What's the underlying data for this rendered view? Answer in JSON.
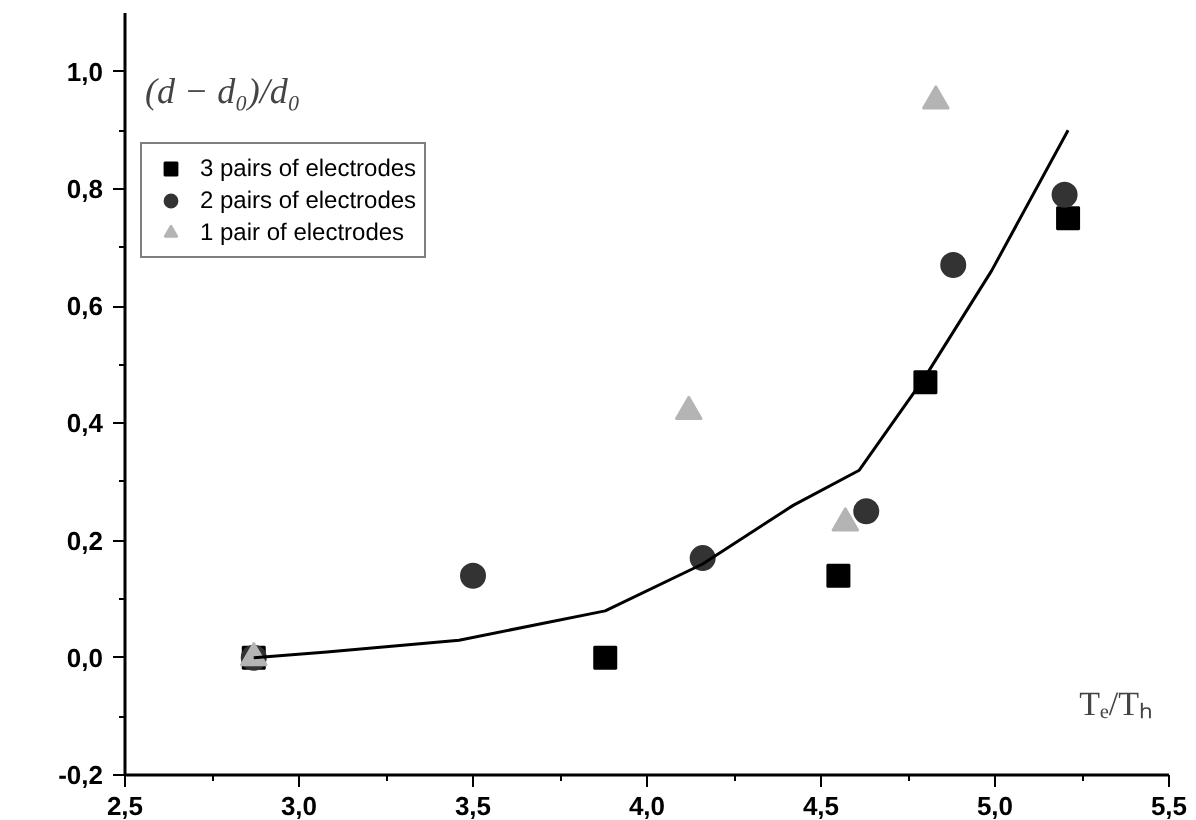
{
  "chart_data": {
    "type": "scatter",
    "xlabel": "Tₑ/Tₕ",
    "ylabel": "(d − d₀)/d₀",
    "xlim": [
      2.5,
      5.5
    ],
    "ylim": [
      -0.2,
      1.1
    ],
    "xticks": [
      {
        "value": 2.5,
        "label": "2,5"
      },
      {
        "value": 2.75,
        "label": null
      },
      {
        "value": 3.0,
        "label": "3,0"
      },
      {
        "value": 3.25,
        "label": null
      },
      {
        "value": 3.5,
        "label": "3,5"
      },
      {
        "value": 3.75,
        "label": null
      },
      {
        "value": 4.0,
        "label": "4,0"
      },
      {
        "value": 4.25,
        "label": null
      },
      {
        "value": 4.5,
        "label": "4,5"
      },
      {
        "value": 4.75,
        "label": null
      },
      {
        "value": 5.0,
        "label": "5,0"
      },
      {
        "value": 5.25,
        "label": null
      },
      {
        "value": 5.5,
        "label": "5,5"
      }
    ],
    "yticks": [
      {
        "value": -0.2,
        "label": "-0,2"
      },
      {
        "value": -0.1,
        "label": null
      },
      {
        "value": 0.0,
        "label": "0,0"
      },
      {
        "value": 0.1,
        "label": null
      },
      {
        "value": 0.2,
        "label": "0,2"
      },
      {
        "value": 0.3,
        "label": null
      },
      {
        "value": 0.4,
        "label": "0,4"
      },
      {
        "value": 0.5,
        "label": null
      },
      {
        "value": 0.6,
        "label": "0,6"
      },
      {
        "value": 0.7,
        "label": null
      },
      {
        "value": 0.8,
        "label": "0,8"
      },
      {
        "value": 0.9,
        "label": null
      },
      {
        "value": 1.0,
        "label": "1,0"
      }
    ],
    "grid": false,
    "legend": "top left",
    "series": [
      {
        "name": "3 pairs of electrodes",
        "color": "#000000",
        "marker": "square",
        "x": [
          2.87,
          3.88,
          4.55,
          4.8,
          5.21
        ],
        "values": [
          0.0,
          0.0,
          0.14,
          0.47,
          0.75
        ]
      },
      {
        "name": "2 pairs of electrodes",
        "color": "#333333",
        "marker": "circle",
        "x": [
          2.87,
          3.5,
          4.16,
          4.63,
          4.88,
          5.2
        ],
        "values": [
          0.0,
          0.14,
          0.17,
          0.25,
          0.67,
          0.79
        ]
      },
      {
        "name": "1 pair of electrodes",
        "color": "#b4b4b4",
        "marker": "triangle",
        "x": [
          2.87,
          4.12,
          4.57,
          4.83
        ],
        "values": [
          0.0,
          0.42,
          0.23,
          0.95
        ]
      },
      {
        "type": "line",
        "color": "#000000",
        "x": [
          2.87,
          3.08,
          3.46,
          3.88,
          4.16,
          4.42,
          4.61,
          4.8,
          4.99,
          5.21
        ],
        "values": [
          0.0,
          0.01,
          0.03,
          0.08,
          0.16,
          0.26,
          0.32,
          0.48,
          0.66,
          0.9
        ]
      }
    ]
  }
}
